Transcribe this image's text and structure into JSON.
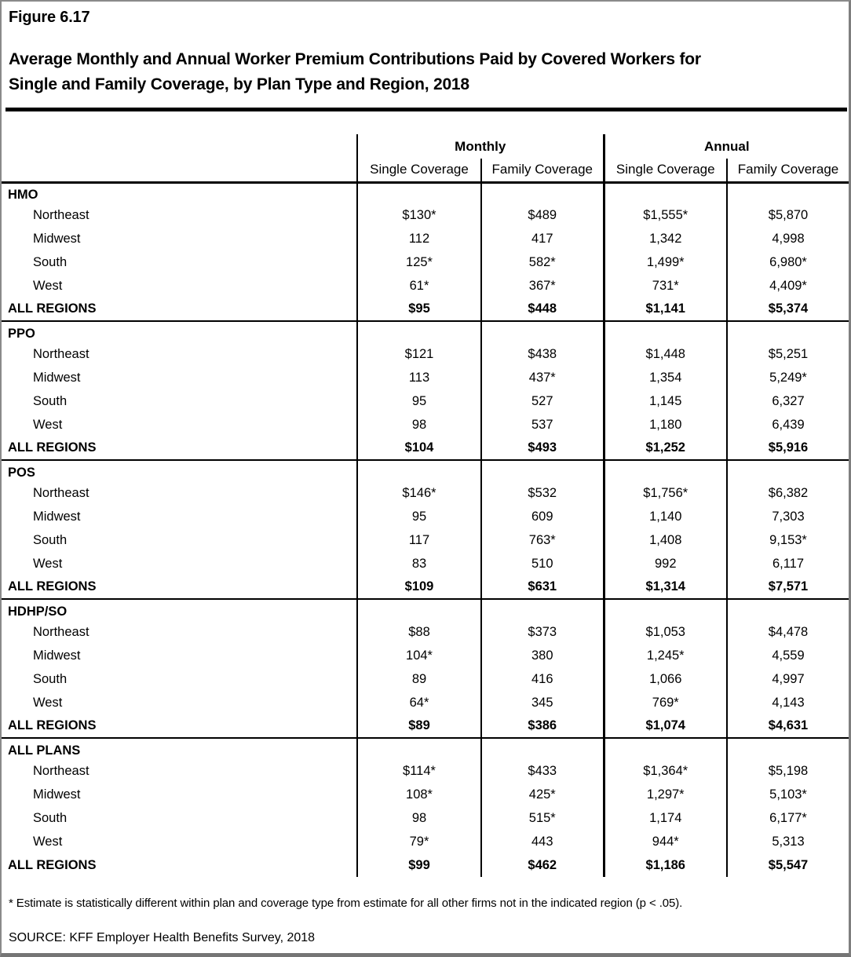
{
  "figure_label": "Figure 6.17",
  "title_line1": "Average Monthly and Annual Worker Premium Contributions Paid by Covered Workers for",
  "title_line2": "Single and Family Coverage, by Plan Type and Region, 2018",
  "colors": {
    "text": "#000000",
    "rule": "#000000",
    "frame_gray": "#8a8a8a"
  },
  "table": {
    "column_groups": {
      "monthly": "Monthly",
      "annual": "Annual"
    },
    "column_headers": [
      "Single Coverage",
      "Family Coverage",
      "Single Coverage",
      "Family Coverage"
    ],
    "sections": [
      {
        "plan": "HMO",
        "rows": [
          {
            "region": "Northeast",
            "emphasis": false,
            "values": [
              "$130*",
              "$489",
              "$1,555*",
              "$5,870"
            ]
          },
          {
            "region": "Midwest",
            "emphasis": false,
            "values": [
              "112",
              "417",
              "1,342",
              "4,998"
            ]
          },
          {
            "region": "South",
            "emphasis": false,
            "values": [
              "125*",
              "582*",
              "1,499*",
              "6,980*"
            ]
          },
          {
            "region": "West",
            "emphasis": false,
            "values": [
              "61*",
              "367*",
              "731*",
              "4,409*"
            ]
          },
          {
            "region": "ALL REGIONS",
            "emphasis": true,
            "values": [
              "$95",
              "$448",
              "$1,141",
              "$5,374"
            ]
          }
        ]
      },
      {
        "plan": "PPO",
        "rows": [
          {
            "region": "Northeast",
            "emphasis": false,
            "values": [
              "$121",
              "$438",
              "$1,448",
              "$5,251"
            ]
          },
          {
            "region": "Midwest",
            "emphasis": false,
            "values": [
              "113",
              "437*",
              "1,354",
              "5,249*"
            ]
          },
          {
            "region": "South",
            "emphasis": false,
            "values": [
              "95",
              "527",
              "1,145",
              "6,327"
            ]
          },
          {
            "region": "West",
            "emphasis": false,
            "values": [
              "98",
              "537",
              "1,180",
              "6,439"
            ]
          },
          {
            "region": "ALL REGIONS",
            "emphasis": true,
            "values": [
              "$104",
              "$493",
              "$1,252",
              "$5,916"
            ]
          }
        ]
      },
      {
        "plan": "POS",
        "rows": [
          {
            "region": "Northeast",
            "emphasis": false,
            "values": [
              "$146*",
              "$532",
              "$1,756*",
              "$6,382"
            ]
          },
          {
            "region": "Midwest",
            "emphasis": false,
            "values": [
              "95",
              "609",
              "1,140",
              "7,303"
            ]
          },
          {
            "region": "South",
            "emphasis": false,
            "values": [
              "117",
              "763*",
              "1,408",
              "9,153*"
            ]
          },
          {
            "region": "West",
            "emphasis": false,
            "values": [
              "83",
              "510",
              "992",
              "6,117"
            ]
          },
          {
            "region": "ALL REGIONS",
            "emphasis": true,
            "values": [
              "$109",
              "$631",
              "$1,314",
              "$7,571"
            ]
          }
        ]
      },
      {
        "plan": "HDHP/SO",
        "rows": [
          {
            "region": "Northeast",
            "emphasis": false,
            "values": [
              "$88",
              "$373",
              "$1,053",
              "$4,478"
            ]
          },
          {
            "region": "Midwest",
            "emphasis": false,
            "values": [
              "104*",
              "380",
              "1,245*",
              "4,559"
            ]
          },
          {
            "region": "South",
            "emphasis": false,
            "values": [
              "89",
              "416",
              "1,066",
              "4,997"
            ]
          },
          {
            "region": "West",
            "emphasis": false,
            "values": [
              "64*",
              "345",
              "769*",
              "4,143"
            ]
          },
          {
            "region": "ALL REGIONS",
            "emphasis": true,
            "values": [
              "$89",
              "$386",
              "$1,074",
              "$4,631"
            ]
          }
        ]
      },
      {
        "plan": "ALL PLANS",
        "rows": [
          {
            "region": "Northeast",
            "emphasis": false,
            "values": [
              "$114*",
              "$433",
              "$1,364*",
              "$5,198"
            ]
          },
          {
            "region": "Midwest",
            "emphasis": false,
            "values": [
              "108*",
              "425*",
              "1,297*",
              "5,103*"
            ]
          },
          {
            "region": "South",
            "emphasis": false,
            "values": [
              "98",
              "515*",
              "1,174",
              "6,177*"
            ]
          },
          {
            "region": "West",
            "emphasis": false,
            "values": [
              "79*",
              "443",
              "944*",
              "5,313"
            ]
          },
          {
            "region": "ALL REGIONS",
            "emphasis": true,
            "values": [
              "$99",
              "$462",
              "$1,186",
              "$5,547"
            ]
          }
        ]
      }
    ]
  },
  "footnote": "* Estimate is statistically different within plan and coverage type from estimate for all other firms not in the indicated region (p < .05).",
  "source": "SOURCE: KFF Employer Health Benefits Survey, 2018"
}
